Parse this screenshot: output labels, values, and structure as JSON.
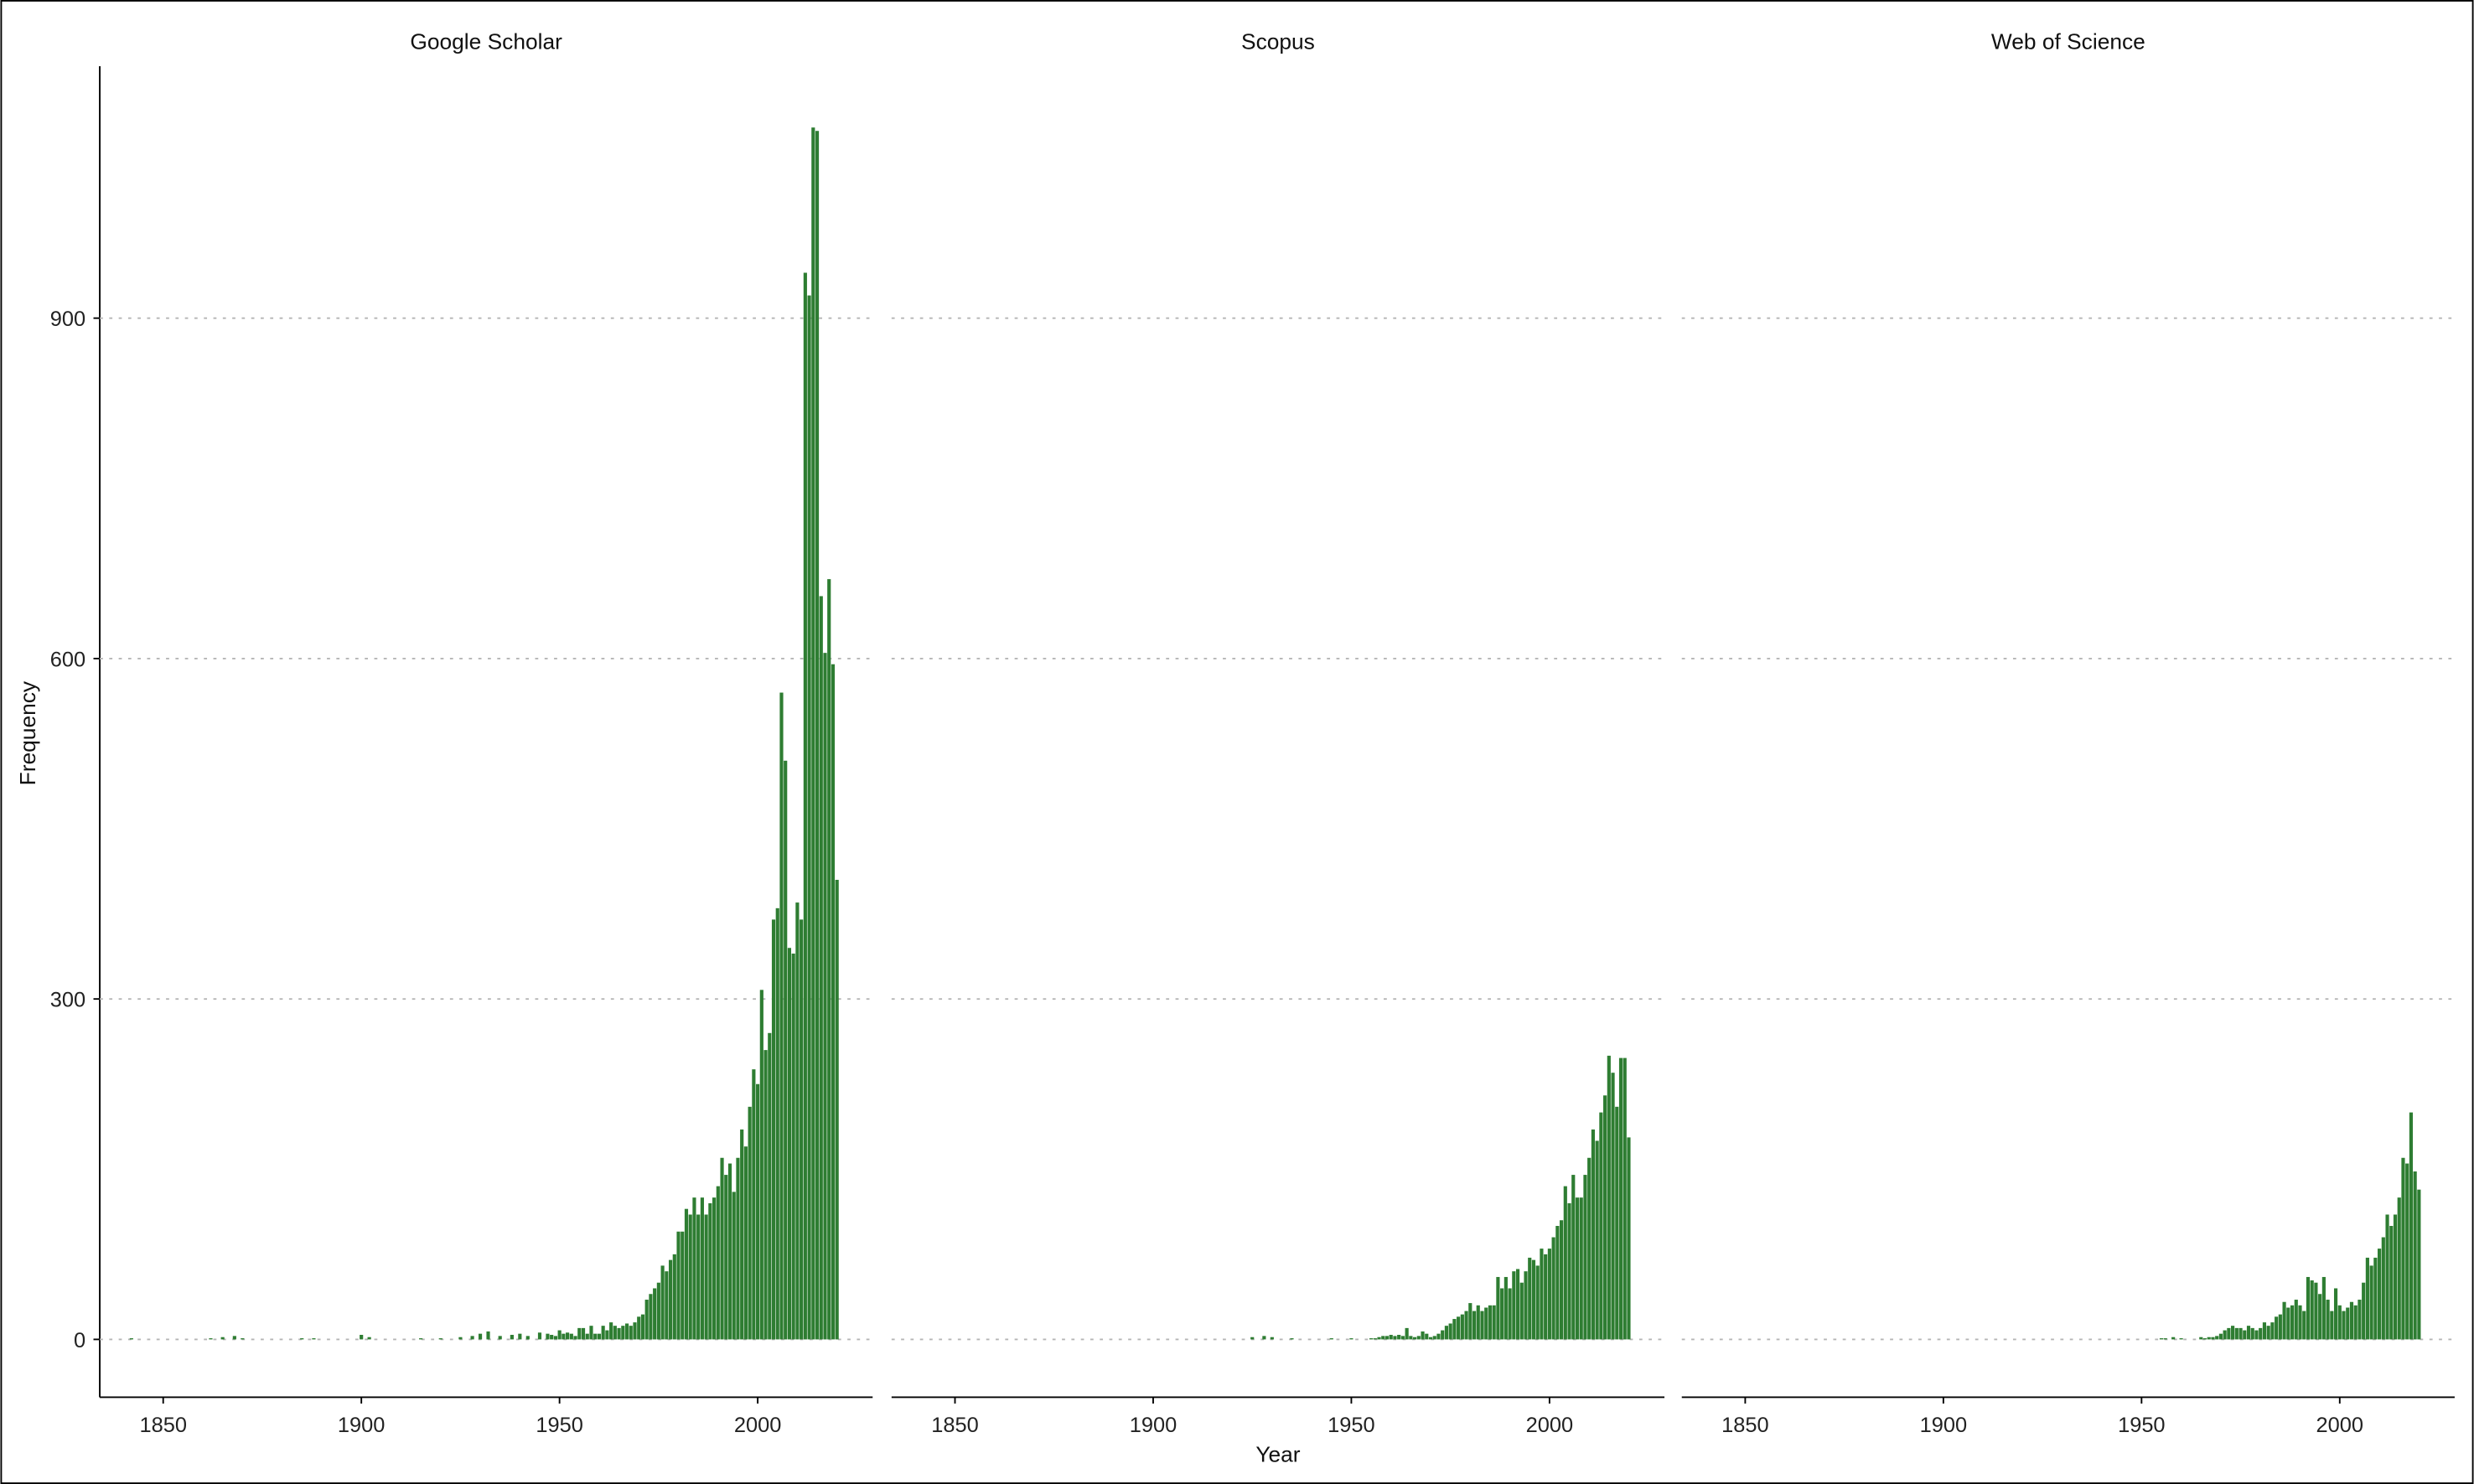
{
  "chart_data": {
    "type": "bar",
    "xlabel": "Year",
    "ylabel": "Frequency",
    "color": "#2e7d32",
    "grid": true,
    "xlim": [
      1834,
      2029
    ],
    "xticks": [
      1850,
      1900,
      1950,
      2000
    ],
    "ylim": [
      -51,
      1122
    ],
    "yticks": [
      0,
      300,
      600,
      900
    ],
    "series": [
      {
        "name": "Google Scholar",
        "x": [
          1842,
          1862,
          1865,
          1868,
          1870,
          1885,
          1888,
          1900,
          1902,
          1915,
          1920,
          1925,
          1928,
          1930,
          1932,
          1935,
          1938,
          1940,
          1942,
          1945,
          1947,
          1948,
          1949,
          1950,
          1951,
          1952,
          1953,
          1954,
          1955,
          1956,
          1957,
          1958,
          1959,
          1960,
          1961,
          1962,
          1963,
          1964,
          1965,
          1966,
          1967,
          1968,
          1969,
          1970,
          1971,
          1972,
          1973,
          1974,
          1975,
          1976,
          1977,
          1978,
          1979,
          1980,
          1981,
          1982,
          1983,
          1984,
          1985,
          1986,
          1987,
          1988,
          1989,
          1990,
          1991,
          1992,
          1993,
          1994,
          1995,
          1996,
          1997,
          1998,
          1999,
          2000,
          2001,
          2002,
          2003,
          2004,
          2005,
          2006,
          2007,
          2008,
          2009,
          2010,
          2011,
          2012,
          2013,
          2014,
          2015,
          2016,
          2017,
          2018,
          2019,
          2020
        ],
        "values": [
          1,
          1,
          2,
          3,
          1,
          1,
          1,
          4,
          2,
          1,
          1,
          2,
          3,
          5,
          7,
          3,
          4,
          5,
          3,
          6,
          5,
          4,
          3,
          8,
          5,
          6,
          5,
          3,
          10,
          10,
          5,
          12,
          5,
          5,
          12,
          8,
          15,
          12,
          10,
          12,
          14,
          12,
          15,
          20,
          22,
          35,
          40,
          45,
          50,
          65,
          60,
          70,
          75,
          95,
          95,
          115,
          110,
          125,
          110,
          125,
          110,
          120,
          125,
          135,
          160,
          145,
          155,
          130,
          160,
          185,
          170,
          205,
          238,
          225,
          308,
          255,
          270,
          370,
          380,
          570,
          510,
          345,
          340,
          385,
          370,
          940,
          920,
          1068,
          1065,
          655,
          605,
          670,
          595,
          405
        ]
      },
      {
        "name": "Scopus",
        "x": [
          1925,
          1928,
          1930,
          1935,
          1945,
          1950,
          1955,
          1956,
          1957,
          1958,
          1959,
          1960,
          1961,
          1962,
          1963,
          1964,
          1965,
          1966,
          1967,
          1968,
          1969,
          1970,
          1971,
          1972,
          1973,
          1974,
          1975,
          1976,
          1977,
          1978,
          1979,
          1980,
          1981,
          1982,
          1983,
          1984,
          1985,
          1986,
          1987,
          1988,
          1989,
          1990,
          1991,
          1992,
          1993,
          1994,
          1995,
          1996,
          1997,
          1998,
          1999,
          2000,
          2001,
          2002,
          2003,
          2004,
          2005,
          2006,
          2007,
          2008,
          2009,
          2010,
          2011,
          2012,
          2013,
          2014,
          2015,
          2016,
          2017,
          2018,
          2019,
          2020
        ],
        "values": [
          2,
          3,
          2,
          1,
          1,
          1,
          1,
          1,
          2,
          3,
          3,
          4,
          3,
          4,
          3,
          10,
          3,
          2,
          3,
          7,
          5,
          2,
          3,
          5,
          8,
          12,
          14,
          18,
          20,
          22,
          25,
          32,
          25,
          30,
          25,
          28,
          30,
          30,
          55,
          45,
          55,
          45,
          60,
          62,
          50,
          60,
          72,
          70,
          65,
          80,
          75,
          80,
          90,
          100,
          105,
          135,
          120,
          145,
          125,
          125,
          145,
          160,
          185,
          175,
          200,
          215,
          250,
          235,
          205,
          248,
          248,
          178
        ]
      },
      {
        "name": "Web of Science",
        "x": [
          1955,
          1956,
          1958,
          1960,
          1965,
          1966,
          1967,
          1968,
          1969,
          1970,
          1971,
          1972,
          1973,
          1974,
          1975,
          1976,
          1977,
          1978,
          1979,
          1980,
          1981,
          1982,
          1983,
          1984,
          1985,
          1986,
          1987,
          1988,
          1989,
          1990,
          1991,
          1992,
          1993,
          1994,
          1995,
          1996,
          1997,
          1998,
          1999,
          2000,
          2001,
          2002,
          2003,
          2004,
          2005,
          2006,
          2007,
          2008,
          2009,
          2010,
          2011,
          2012,
          2013,
          2014,
          2015,
          2016,
          2017,
          2018,
          2019,
          2020
        ],
        "values": [
          1,
          1,
          2,
          1,
          2,
          1,
          2,
          2,
          3,
          5,
          8,
          10,
          12,
          10,
          10,
          8,
          12,
          10,
          8,
          10,
          15,
          12,
          15,
          20,
          22,
          33,
          28,
          30,
          35,
          30,
          25,
          55,
          52,
          50,
          40,
          55,
          35,
          25,
          45,
          30,
          25,
          28,
          33,
          30,
          35,
          50,
          72,
          65,
          72,
          80,
          90,
          110,
          100,
          110,
          125,
          160,
          155,
          200,
          148,
          132
        ]
      }
    ]
  }
}
